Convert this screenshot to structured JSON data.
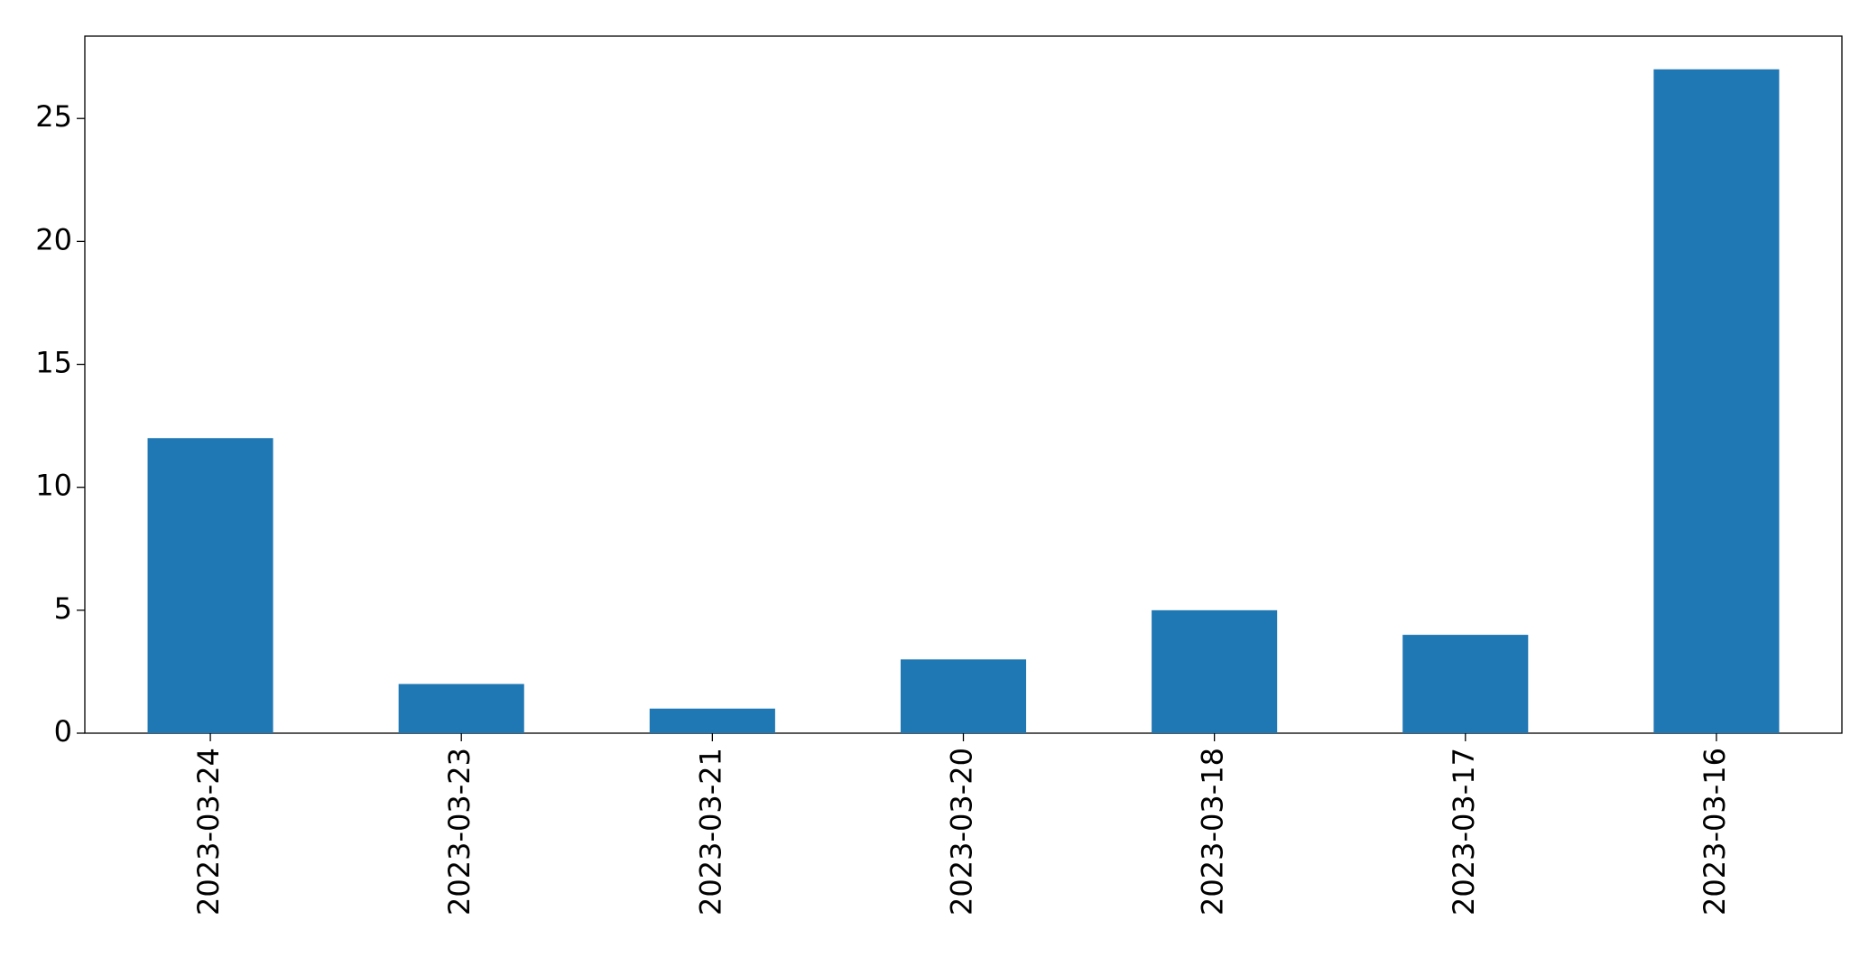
{
  "chart_data": {
    "type": "bar",
    "categories": [
      "2023-03-24",
      "2023-03-23",
      "2023-03-21",
      "2023-03-20",
      "2023-03-18",
      "2023-03-17",
      "2023-03-16"
    ],
    "values": [
      12,
      2,
      1,
      3,
      5,
      4,
      27
    ],
    "color": "#1f77b4",
    "ylim": [
      0,
      28.35
    ],
    "yticks": [
      0,
      5,
      10,
      15,
      20,
      25
    ],
    "grid": false
  }
}
